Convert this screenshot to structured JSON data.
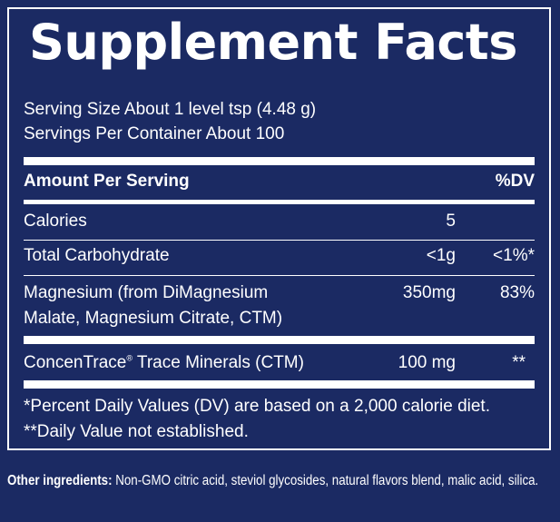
{
  "panel": {
    "title": "Supplement Facts",
    "serving_size": "Serving Size About 1 level tsp (4.48 g)",
    "servings_per_container": "Servings Per Container About 100",
    "header": {
      "amount_label": "Amount Per Serving",
      "dv_label": "%DV"
    },
    "rows": [
      {
        "name": "Calories",
        "amount": "5",
        "dv": ""
      },
      {
        "name": "Total Carbohydrate",
        "amount": "<1g",
        "dv": "<1%*"
      },
      {
        "name_line1": "Magnesium (from DiMagnesium",
        "name_line2": "Malate, Magnesium Citrate, CTM)",
        "amount": "350mg",
        "dv": "83%"
      },
      {
        "name": "ConcenTrace",
        "name_mark": "®",
        "name_rest": " Trace Minerals (CTM)",
        "amount": "100 mg",
        "dv": "**"
      }
    ],
    "footnote_1": "*Percent Daily Values (DV) are based on a 2,000 calorie diet.",
    "footnote_2": "**Daily Value not established."
  },
  "other_ingredients": {
    "label": "Other ingredients:",
    "text": " Non-GMO citric acid, steviol glycosides, natural flavors blend, malic acid, silica."
  }
}
